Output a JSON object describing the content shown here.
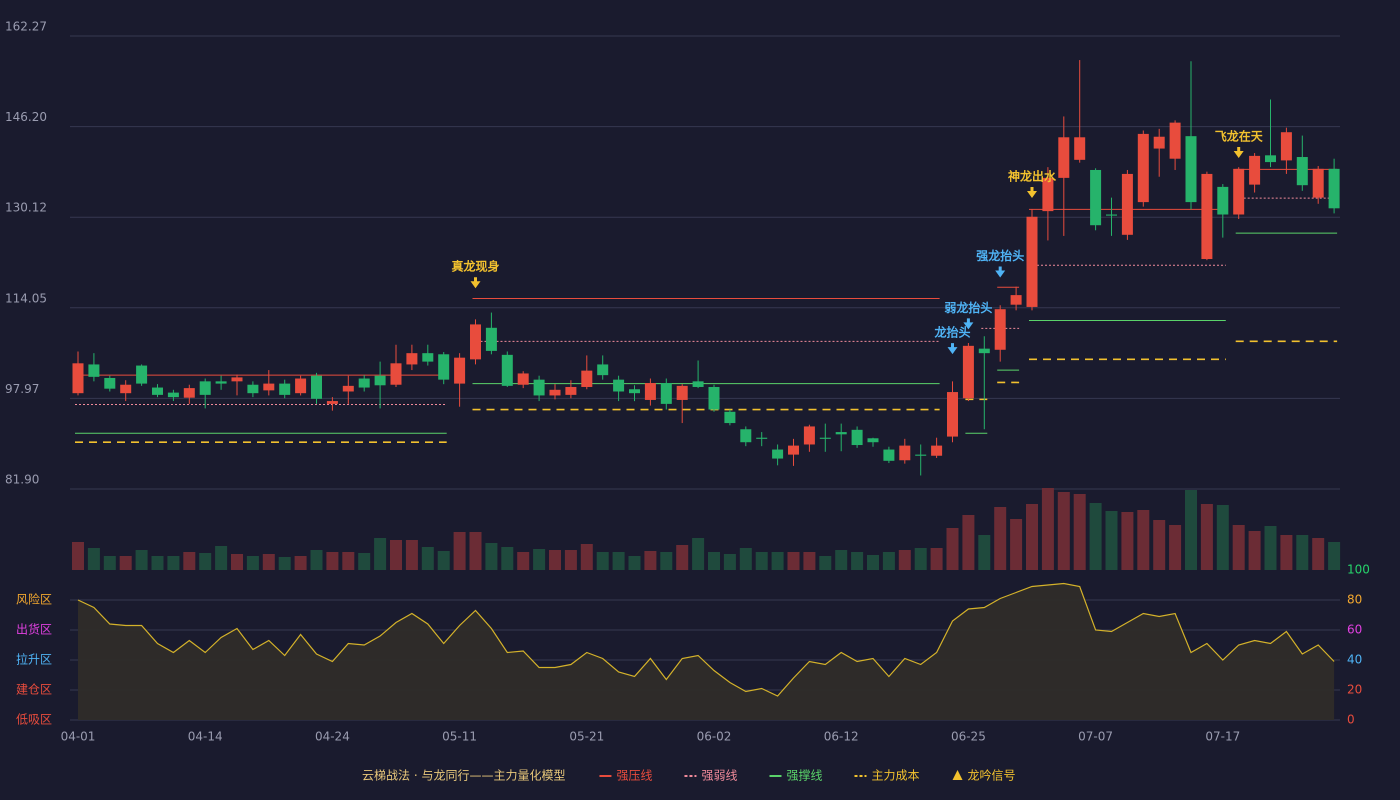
{
  "chart_data": {
    "type": "candlestick",
    "categories": [
      "04-01",
      null,
      null,
      null,
      null,
      null,
      null,
      null,
      "04-14",
      null,
      null,
      null,
      null,
      null,
      null,
      null,
      "04-24",
      null,
      null,
      null,
      null,
      null,
      null,
      null,
      "05-11",
      null,
      null,
      null,
      null,
      null,
      null,
      null,
      "05-21",
      null,
      null,
      null,
      null,
      null,
      null,
      null,
      "06-02",
      null,
      null,
      null,
      null,
      null,
      null,
      null,
      "06-12",
      null,
      null,
      null,
      null,
      null,
      null,
      null,
      "06-25",
      null,
      null,
      null,
      null,
      null,
      null,
      null,
      "07-07",
      null,
      null,
      null,
      null,
      null,
      null,
      null,
      "07-17",
      null,
      null,
      null,
      null,
      null,
      null,
      null
    ],
    "open": [
      98.9,
      104.0,
      101.6,
      98.9,
      103.8,
      99.9,
      99.0,
      98.1,
      101.0,
      101.0,
      101.0,
      100.4,
      99.4,
      100.6,
      98.9,
      102.0,
      97.0,
      99.2,
      101.5,
      102.0,
      100.4,
      104.0,
      106.0,
      105.8,
      100.6,
      104.9,
      110.5,
      105.7,
      100.4,
      101.3,
      98.5,
      98.6,
      100.0,
      104.0,
      101.3,
      99.6,
      97.7,
      100.7,
      97.7,
      101.0,
      100.0,
      95.6,
      92.5,
      91.0,
      88.9,
      88.0,
      89.8,
      91.0,
      92.0,
      92.4,
      90.9,
      88.9,
      87.0,
      88.0,
      87.8,
      91.2,
      98.0,
      106.8,
      106.6,
      114.6,
      114.2,
      131.2,
      137.1,
      140.3,
      138.5,
      130.6,
      127.0,
      132.8,
      142.3,
      140.5,
      144.5,
      122.7,
      135.5,
      130.6,
      135.9,
      141.1,
      140.2,
      140.8,
      133.6,
      138.7
    ],
    "high": [
      106.3,
      106.0,
      102.0,
      101.2,
      104.0,
      100.5,
      99.5,
      100.4,
      101.5,
      102.0,
      102.2,
      101.0,
      103.0,
      101.3,
      102.0,
      102.5,
      98.2,
      102.0,
      102.1,
      104.5,
      107.5,
      107.5,
      107.5,
      106.2,
      106.0,
      112.0,
      113.2,
      106.3,
      102.8,
      102.0,
      100.5,
      101.2,
      105.6,
      105.6,
      102.0,
      100.3,
      101.5,
      101.5,
      100.5,
      104.7,
      100.4,
      96.0,
      93.0,
      92.0,
      89.8,
      90.8,
      93.3,
      93.5,
      93.5,
      93.0,
      91.0,
      89.4,
      90.8,
      89.8,
      91.0,
      101.0,
      107.8,
      109.0,
      114.5,
      117.8,
      131.5,
      139.0,
      148.0,
      158.0,
      138.8,
      133.6,
      138.5,
      145.5,
      145.8,
      147.3,
      157.8,
      138.2,
      136.0,
      139.0,
      141.5,
      151.0,
      146.0,
      144.6,
      139.2,
      140.5
    ],
    "low": [
      98.5,
      101.0,
      99.2,
      97.5,
      100.2,
      98.2,
      97.5,
      97.0,
      96.2,
      99.5,
      98.5,
      98.2,
      98.5,
      98.0,
      98.5,
      97.0,
      95.8,
      97.0,
      99.2,
      96.2,
      100.0,
      103.0,
      103.8,
      100.5,
      96.5,
      104.0,
      105.8,
      100.0,
      99.8,
      97.5,
      97.8,
      98.0,
      99.6,
      101.3,
      97.5,
      97.5,
      96.7,
      96.0,
      93.6,
      99.8,
      95.6,
      93.2,
      89.5,
      89.5,
      86.1,
      86.0,
      88.5,
      88.5,
      88.6,
      89.2,
      89.4,
      86.5,
      86.4,
      84.3,
      87.4,
      90.2,
      97.5,
      92.5,
      104.5,
      113.6,
      113.6,
      126.0,
      126.8,
      139.8,
      127.8,
      126.8,
      126.1,
      132.0,
      137.3,
      138.5,
      131.5,
      122.5,
      126.5,
      129.8,
      134.5,
      139.0,
      137.8,
      134.8,
      132.5,
      130.8
    ],
    "close": [
      104.2,
      101.8,
      99.7,
      100.4,
      100.6,
      98.6,
      98.2,
      99.8,
      98.6,
      100.6,
      101.7,
      98.9,
      100.6,
      98.6,
      101.5,
      97.9,
      97.5,
      100.2,
      99.9,
      100.3,
      104.2,
      106.0,
      104.5,
      101.3,
      105.2,
      111.1,
      106.4,
      100.2,
      102.4,
      98.5,
      99.5,
      100.0,
      102.9,
      102.1,
      99.2,
      98.9,
      100.7,
      97.0,
      100.2,
      100.0,
      96.0,
      93.6,
      90.2,
      90.8,
      87.3,
      89.6,
      93.0,
      90.8,
      91.6,
      89.7,
      90.2,
      86.9,
      89.6,
      87.8,
      89.6,
      99.1,
      107.3,
      106.0,
      113.8,
      116.3,
      130.2,
      137.1,
      144.3,
      144.3,
      128.7,
      130.4,
      137.8,
      144.9,
      144.4,
      146.9,
      132.8,
      137.8,
      130.6,
      138.7,
      141.0,
      139.9,
      145.2,
      135.8,
      138.7,
      131.7
    ],
    "up_color": "#e84c3d",
    "down_color": "#26b36b",
    "ylim": [
      81.9,
      162.27
    ],
    "yticks": [
      {
        "value": 162.27,
        "label": "162.27"
      },
      {
        "value": 146.2,
        "label": "146.20"
      },
      {
        "value": 130.12,
        "label": "130.12"
      },
      {
        "value": 114.05,
        "label": "114.05"
      },
      {
        "value": 97.97,
        "label": "97.97"
      },
      {
        "value": 81.9,
        "label": "81.90"
      }
    ],
    "grid": true,
    "levels": [
      {
        "name": "强压线",
        "color": "#e84c3d",
        "dash": false,
        "segments": [
          {
            "start": 0,
            "end": 23,
            "value": 102.1
          },
          {
            "start": 25,
            "end": 54,
            "value": 115.7
          },
          {
            "start": 58,
            "end": 59,
            "value": 117.7
          },
          {
            "start": 60,
            "end": 72,
            "value": 131.5
          },
          {
            "start": 73,
            "end": 79,
            "value": 138.6
          }
        ]
      },
      {
        "name": "强弱线",
        "color": "#f08a9a",
        "dash": true,
        "segments": [
          {
            "start": 0,
            "end": 23,
            "value": 96.9
          },
          {
            "start": 25,
            "end": 54,
            "value": 108.1
          },
          {
            "start": 57,
            "end": 59,
            "value": 110.4
          },
          {
            "start": 60,
            "end": 72,
            "value": 121.6
          },
          {
            "start": 73,
            "end": 79,
            "value": 133.5
          }
        ]
      },
      {
        "name": "强撑线",
        "color": "#5ad36a",
        "dash": false,
        "segments": [
          {
            "start": 0,
            "end": 23,
            "value": 91.8
          },
          {
            "start": 25,
            "end": 54,
            "value": 100.6
          },
          {
            "start": 56,
            "end": 57,
            "value": 91.8
          },
          {
            "start": 58,
            "end": 59,
            "value": 103.0
          },
          {
            "start": 60,
            "end": 72,
            "value": 111.8
          },
          {
            "start": 73,
            "end": 79,
            "value": 127.3
          }
        ]
      },
      {
        "name": "主力成本",
        "color": "#f2c12e",
        "dash": true,
        "segments": [
          {
            "start": 0,
            "end": 23,
            "value": 90.2
          },
          {
            "start": 25,
            "end": 54,
            "value": 96.0
          },
          {
            "start": 56,
            "end": 57,
            "value": 97.8
          },
          {
            "start": 58,
            "end": 59,
            "value": 100.8
          },
          {
            "start": 60,
            "end": 72,
            "value": 104.9
          },
          {
            "start": 73,
            "end": 79,
            "value": 108.1
          }
        ]
      }
    ],
    "signals": [
      {
        "label": "真龙现身",
        "index": 25,
        "value": 117.7,
        "color": "#f2c12e"
      },
      {
        "label": "龙抬头",
        "index": 55,
        "value": 106.0,
        "color": "#4fb3f5"
      },
      {
        "label": "弱龙抬头",
        "index": 56,
        "value": 110.4,
        "color": "#4fb3f5"
      },
      {
        "label": "强龙抬头",
        "index": 58,
        "value": 119.6,
        "color": "#4fb3f5"
      },
      {
        "label": "神龙出水",
        "index": 60,
        "value": 133.7,
        "color": "#f2c12e"
      },
      {
        "label": "飞龙在天",
        "index": 73,
        "value": 140.8,
        "color": "#f2c12e"
      }
    ],
    "signal_legend": {
      "name": "龙吟信号",
      "color": "#f2c12e"
    },
    "volume": {
      "values": [
        28,
        22,
        14,
        14,
        20,
        14,
        14,
        18,
        17,
        24,
        16,
        14,
        16,
        13,
        14,
        20,
        18,
        18,
        17,
        32,
        30,
        30,
        23,
        19,
        38,
        38,
        27,
        23,
        18,
        21,
        20,
        20,
        26,
        18,
        18,
        14,
        19,
        18,
        25,
        32,
        18,
        16,
        22,
        18,
        18,
        18,
        18,
        14,
        20,
        18,
        15,
        18,
        20,
        22,
        22,
        42,
        55,
        35,
        63,
        51,
        66,
        82,
        78,
        76,
        67,
        59,
        58,
        60,
        50,
        45,
        80,
        66,
        65,
        45,
        39,
        44,
        35,
        35,
        32,
        28
      ],
      "ylim": [
        0,
        82
      ],
      "up_color": "#6b2c35",
      "down_color": "#1f4a3d"
    },
    "oscillator": {
      "values": [
        80,
        75,
        64,
        63,
        63,
        51,
        45,
        53,
        45,
        55,
        61,
        47,
        53,
        43,
        57,
        44,
        39,
        51,
        50,
        56,
        65,
        71,
        64,
        51,
        63,
        73,
        61,
        45,
        46,
        35,
        35,
        37,
        45,
        41,
        32,
        29,
        41,
        27,
        41,
        43,
        33,
        25,
        19,
        21,
        16,
        28,
        39,
        37,
        45,
        39,
        41,
        29,
        41,
        37,
        45,
        66,
        74,
        75,
        81,
        85,
        89,
        90,
        91,
        89,
        60,
        59,
        65,
        71,
        69,
        71,
        45,
        51,
        40,
        50,
        53,
        51,
        59,
        44,
        50,
        39
      ],
      "ylim": [
        0,
        100
      ],
      "color": "#d4b22a",
      "yticks": [
        0,
        20,
        40,
        60,
        80,
        100
      ],
      "ytick_colors": [
        "#e84c3d",
        "#e84c3d",
        "#4fb3f5",
        "#e040e0",
        "#f2a72e",
        "#26d36b"
      ],
      "zones": [
        {
          "value": 80,
          "label": "风险区",
          "color": "#f2a72e"
        },
        {
          "value": 60,
          "label": "出货区",
          "color": "#e040e0"
        },
        {
          "value": 40,
          "label": "拉升区",
          "color": "#4fb3f5"
        },
        {
          "value": 20,
          "label": "建仓区",
          "color": "#e84c3d"
        },
        {
          "value": 0,
          "label": "低吸区",
          "color": "#e84c3d"
        }
      ]
    },
    "legend_title": "云梯战法 · 与龙同行——主力量化模型"
  }
}
